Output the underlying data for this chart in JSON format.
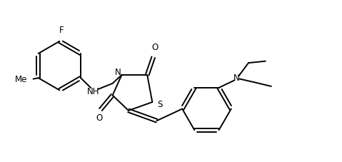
{
  "background_color": "#ffffff",
  "line_color": "#000000",
  "line_width": 1.4,
  "font_size": 8.5,
  "figsize": [
    4.79,
    2.27
  ],
  "dpi": 100,
  "xlim": [
    0,
    10
  ],
  "ylim": [
    0,
    4.74
  ]
}
